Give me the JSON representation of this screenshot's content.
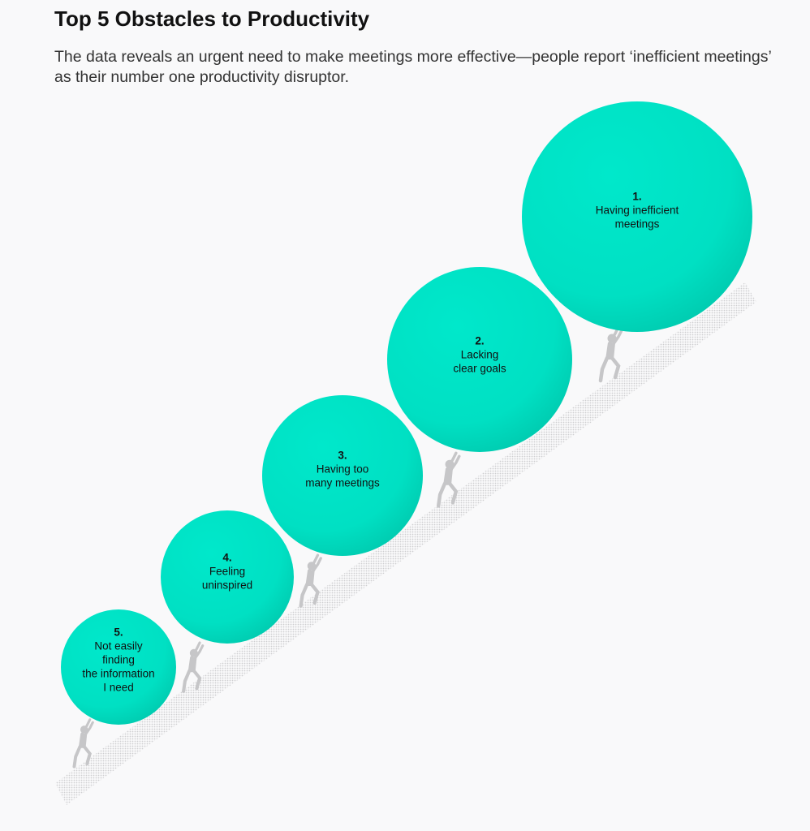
{
  "title": "Top 5 Obstacles to Productivity",
  "subtitle": "The data reveals an urgent need to make meetings more effective—people report ‘inefficient meetings’ as their number one productivity disruptor.",
  "colors": {
    "ball": "#00e5c8",
    "ball_edge": "#00c7ad",
    "ramp": "#d4d4d6",
    "figure": "#c6c6c8"
  },
  "obstacles": [
    {
      "rank": "1.",
      "label": "Having inefficient\nmeetings"
    },
    {
      "rank": "2.",
      "label": "Lacking\nclear goals"
    },
    {
      "rank": "3.",
      "label": "Having too\nmany meetings"
    },
    {
      "rank": "4.",
      "label": "Feeling\nuninspired"
    },
    {
      "rank": "5.",
      "label": "Not easily\nfinding\nthe information\nI need"
    }
  ]
}
